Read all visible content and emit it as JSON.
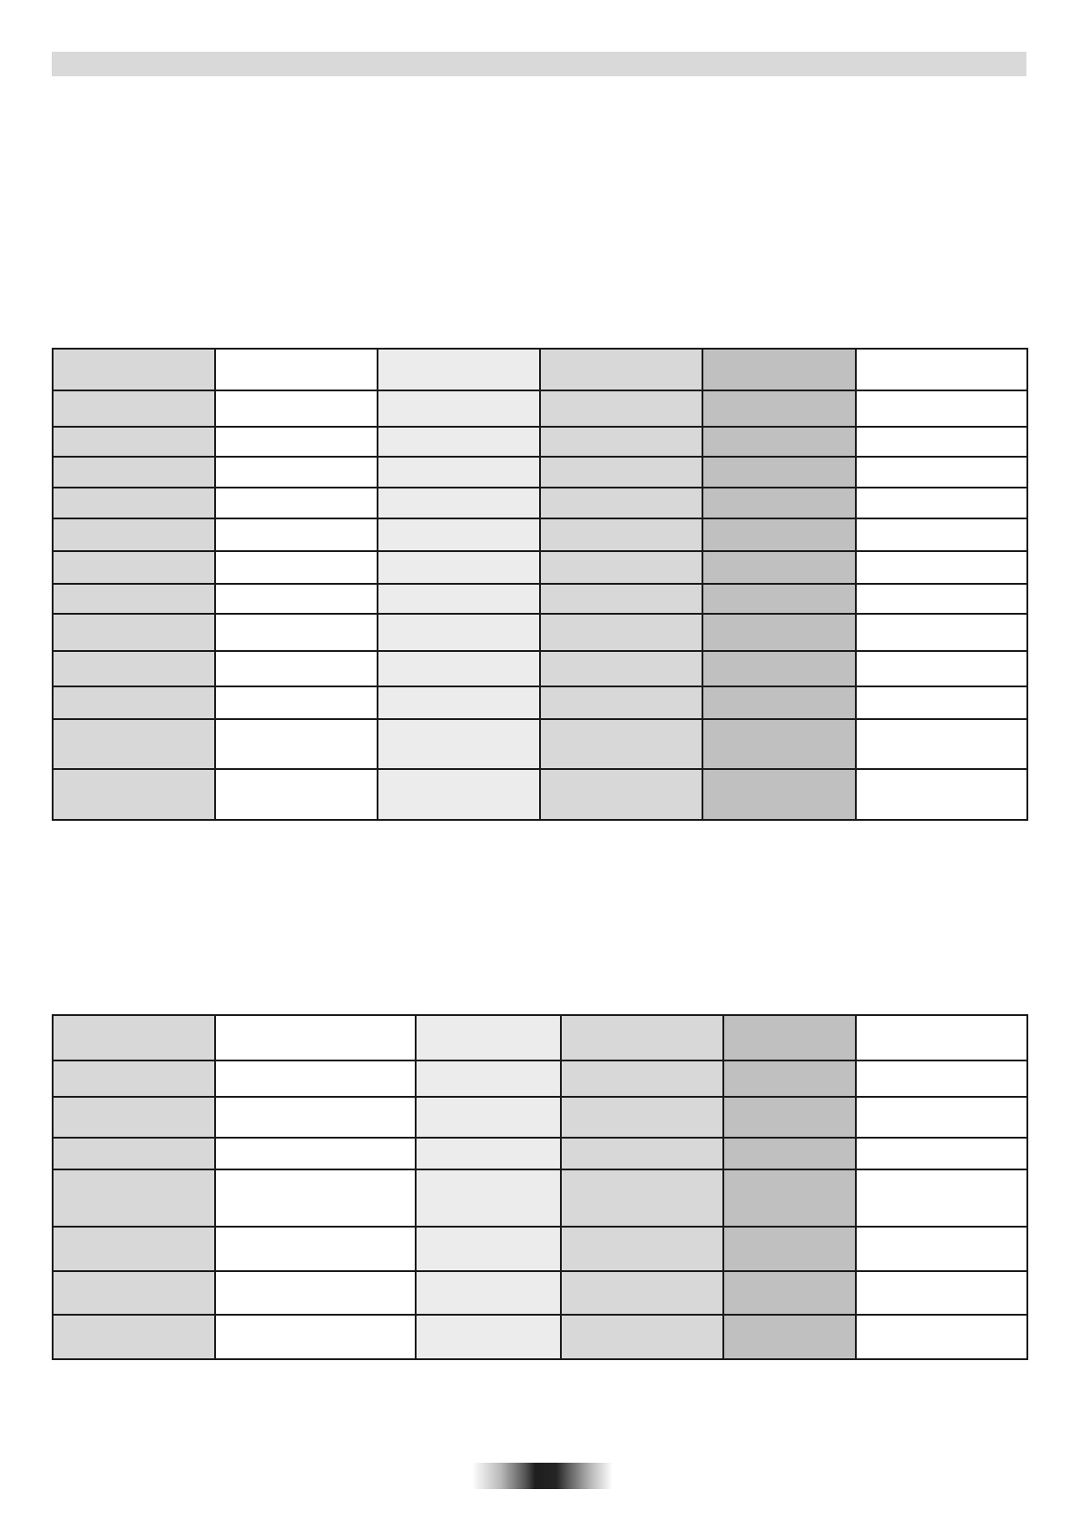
{
  "header_bar": {
    "color": "#d9d9d9"
  },
  "tables": [
    {
      "columns": 6,
      "rows": 13,
      "column_colors": [
        "#d8d8d8",
        "#ffffff",
        "#ececec",
        "#d8d8d8",
        "#c0c0c0",
        "#ffffff"
      ]
    },
    {
      "columns": 6,
      "rows": 8,
      "column_colors": [
        "#d8d8d8",
        "#ffffff",
        "#ececec",
        "#d8d8d8",
        "#c0c0c0",
        "#ffffff"
      ]
    }
  ],
  "footer": {
    "page_marker": "gradient-bar"
  }
}
